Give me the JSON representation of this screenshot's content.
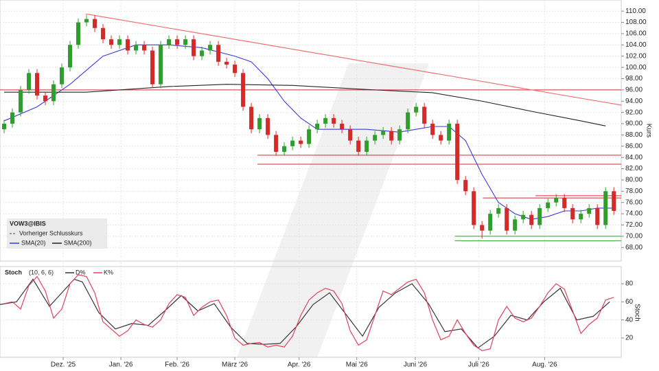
{
  "chart_data": [
    {
      "type": "candlestick",
      "title": "VOW3@IBIS",
      "reference_label": "Vorheriger Schlusskurs",
      "axis_label": "Kurs",
      "up_color": "#2f9e2f",
      "down_color": "#d42a2a",
      "xlim": [
        -0.5,
        74.9
      ],
      "ylim": [
        66.2,
        111
      ],
      "yticks": [
        {
          "value": 68,
          "label": "68.00"
        },
        {
          "value": 70,
          "label": "70.00"
        },
        {
          "value": 72,
          "label": "72.00"
        },
        {
          "value": 74,
          "label": "74.00"
        },
        {
          "value": 76,
          "label": "76.00"
        },
        {
          "value": 78,
          "label": "78.00"
        },
        {
          "value": 80,
          "label": "80.00"
        },
        {
          "value": 82,
          "label": "82.00"
        },
        {
          "value": 84,
          "label": "84.00"
        },
        {
          "value": 86,
          "label": "86.00"
        },
        {
          "value": 88,
          "label": "88.00"
        },
        {
          "value": 90,
          "label": "90.00"
        },
        {
          "value": 92,
          "label": "92.00"
        },
        {
          "value": 94,
          "label": "94.00"
        },
        {
          "value": 96,
          "label": "96.00"
        },
        {
          "value": 98,
          "label": "98.00"
        },
        {
          "value": 100,
          "label": "100.00"
        },
        {
          "value": 102,
          "label": "102.00"
        },
        {
          "value": 104,
          "label": "104.00"
        },
        {
          "value": 106,
          "label": "106.00"
        },
        {
          "value": 108,
          "label": "108.00"
        },
        {
          "value": 110,
          "label": "110.00"
        }
      ],
      "grid": true,
      "open": [
        89,
        90,
        92,
        96,
        99,
        95,
        94,
        97,
        100,
        104,
        108,
        108.6,
        107,
        105,
        104,
        105,
        103,
        104,
        103,
        97,
        104,
        105,
        104,
        105,
        102,
        103,
        104,
        101,
        100.5,
        99,
        93,
        89,
        91,
        88,
        85,
        86,
        87,
        86.4,
        89,
        90,
        91,
        90,
        89,
        87,
        85,
        87,
        88,
        88.7,
        87,
        89,
        92,
        93,
        90,
        88,
        87,
        90,
        80,
        78,
        72,
        71,
        74,
        75,
        71,
        73,
        73.8,
        72,
        75,
        76,
        76.8,
        75,
        73,
        74,
        75,
        72,
        78
      ],
      "high": [
        90.7,
        92.7,
        96.7,
        99.7,
        99.7,
        95.7,
        97.7,
        100.7,
        104.7,
        108.7,
        109.3,
        109.3,
        107.7,
        105.7,
        105.7,
        105.7,
        104.7,
        104.7,
        103.7,
        104.7,
        105.7,
        105.7,
        105.7,
        105.7,
        103.7,
        104.7,
        104.7,
        101.7,
        101.2,
        99.7,
        93.7,
        91.7,
        91.7,
        88.7,
        86.7,
        87.7,
        87.7,
        89.7,
        90.7,
        91.7,
        91.7,
        90.7,
        89.7,
        87.7,
        87.7,
        88.7,
        89.4,
        89.4,
        89.7,
        92.7,
        93.7,
        93.7,
        90.7,
        88.7,
        90.7,
        90.7,
        80.7,
        78.7,
        72.7,
        74.7,
        75.7,
        75.7,
        73.7,
        74.5,
        74.5,
        75.7,
        76.7,
        77.5,
        77.5,
        75.7,
        74.7,
        75.7,
        75.7,
        78.7,
        78.7
      ],
      "low": [
        88.3,
        89.3,
        91.3,
        95.3,
        94.3,
        93.3,
        93.3,
        96.3,
        99.3,
        103.3,
        107.3,
        106.3,
        104.3,
        103.3,
        103.3,
        102.3,
        102.3,
        102.3,
        96.3,
        96.3,
        103.3,
        103.3,
        103.3,
        101.3,
        101.3,
        102.3,
        100.3,
        99.8,
        98.3,
        92.3,
        88.3,
        88.3,
        87.3,
        84.3,
        84.3,
        85.3,
        85.7,
        85.7,
        88.3,
        89.3,
        89.3,
        88.3,
        86.3,
        84.3,
        84.3,
        86.3,
        87.3,
        86.3,
        86.3,
        88.3,
        91.3,
        89.3,
        87.3,
        86.3,
        86.3,
        79.3,
        77.3,
        71.3,
        69.6,
        70.3,
        73.3,
        70.3,
        70.3,
        72.3,
        71.3,
        71.3,
        74.3,
        75.3,
        74.3,
        72.3,
        72.3,
        73.3,
        71.3,
        71.3,
        73.8
      ],
      "close": [
        90,
        92,
        96,
        99,
        95,
        94,
        97,
        100,
        104,
        108,
        108.6,
        107,
        105,
        104,
        105,
        103,
        104,
        103,
        97,
        104,
        105,
        104,
        105,
        102,
        103,
        104,
        101,
        100.5,
        99,
        93,
        89,
        91,
        88,
        85,
        86,
        87,
        86.4,
        89,
        90,
        91,
        90,
        89,
        87,
        85,
        87,
        88,
        88.7,
        87,
        89,
        92,
        93,
        90,
        88,
        87,
        90,
        80,
        78,
        72,
        71,
        74,
        75,
        71,
        73,
        73.8,
        72,
        75,
        76,
        76.8,
        75,
        73,
        74,
        75,
        72,
        78,
        74.5
      ],
      "series": [
        {
          "name": "SMA(20)",
          "color": "#3a3adf",
          "x": [
            0,
            4,
            8,
            12,
            16,
            20,
            24,
            28,
            30,
            32,
            34,
            36,
            38,
            40,
            44,
            48,
            50,
            52,
            54,
            56,
            58,
            60,
            62,
            64,
            66,
            68,
            70,
            72,
            74
          ],
          "values": [
            90.5,
            93,
            97,
            102,
            104,
            104,
            103.5,
            102,
            101,
            98,
            94,
            91,
            89,
            89,
            89,
            88.5,
            89,
            89.5,
            89.5,
            87,
            81,
            76,
            74,
            73,
            73.5,
            74.5,
            74.5,
            75,
            75
          ]
        },
        {
          "name": "SMA(200)",
          "color": "#222222",
          "x": [
            0,
            10,
            20,
            27,
            35,
            45,
            52,
            58,
            64,
            70,
            73
          ],
          "values": [
            95.6,
            95.6,
            96.6,
            97,
            96.8,
            96,
            95.5,
            94,
            92.2,
            90.5,
            89.6
          ]
        }
      ],
      "levels": [
        {
          "value": 96,
          "start": -0.5,
          "color": "#d42a2a"
        },
        {
          "value": 84.4,
          "start": 30.75,
          "color": "#d42a2a"
        },
        {
          "value": 82.8,
          "start": 30.75,
          "color": "#d42a2a"
        },
        {
          "value": 77.2,
          "start": 64.5,
          "color": "#d42a2a"
        },
        {
          "value": 76.8,
          "start": 58.1,
          "color": "#d42a2a"
        },
        {
          "value": 70,
          "start": 54.7,
          "color": "#2f9e2f"
        },
        {
          "value": 69.2,
          "start": 54.7,
          "color": "#2f9e2f"
        }
      ],
      "trendline": {
        "x": [
          9.9,
          74.9
        ],
        "values": [
          109.5,
          93.3
        ],
        "color": "#f07070"
      }
    },
    {
      "type": "line",
      "title": "Stoch",
      "params": "(10, 6, 6)",
      "axis_label": "Stoch",
      "xlim": [
        -0.5,
        74.9
      ],
      "ylim": [
        -1.3,
        97.5
      ],
      "yticks": [
        20,
        40,
        60,
        80
      ],
      "grid": true,
      "xticks": [
        {
          "value": 7.17,
          "label": "Dez. '25"
        },
        {
          "value": 14.17,
          "label": "Jan. '26"
        },
        {
          "value": 21,
          "label": "Feb. '26"
        },
        {
          "value": 28,
          "label": "März '26"
        },
        {
          "value": 35.8,
          "label": "Apr. '26"
        },
        {
          "value": 42.8,
          "label": "Mai '26"
        },
        {
          "value": 49.9,
          "label": "Juni '26"
        },
        {
          "value": 57.6,
          "label": "Juli '26"
        },
        {
          "value": 65.6,
          "label": "Aug. '26"
        }
      ],
      "series": [
        {
          "name": "D%",
          "color": "#333333",
          "x": [
            -0.5,
            1.5,
            3.5,
            5.5,
            7.5,
            8.5,
            9.5,
            11.5,
            13.5,
            15.5,
            17.5,
            19.5,
            21.5,
            23.5,
            25.5,
            27.5,
            29.5,
            31.5,
            33.5,
            35.5,
            37.5,
            39.5,
            41.5,
            43.5,
            45.5,
            47.5,
            49.5,
            51.5,
            53.5,
            55.5,
            57.5,
            59.5,
            61.5,
            63.5,
            65.5,
            67.5,
            69.5,
            71.5,
            73.5
          ],
          "values": [
            57,
            60,
            85,
            55,
            75,
            85,
            82,
            48,
            30,
            36,
            34,
            50,
            67,
            50,
            58,
            32,
            14,
            13,
            14,
            33,
            57,
            70,
            46,
            22,
            54,
            70,
            80,
            58,
            27,
            30,
            9,
            22,
            45,
            40,
            60,
            75,
            40,
            44,
            60
          ]
        },
        {
          "name": "K%",
          "color": "#e0405a",
          "values": [
            58,
            60,
            52,
            78,
            88,
            72,
            42,
            52,
            80,
            90,
            88,
            70,
            38,
            30,
            22,
            28,
            40,
            35,
            32,
            40,
            58,
            68,
            65,
            45,
            54,
            60,
            62,
            45,
            20,
            12,
            14,
            15,
            10,
            12,
            10,
            22,
            45,
            62,
            70,
            75,
            72,
            58,
            28,
            12,
            18,
            45,
            72,
            68,
            75,
            82,
            85,
            70,
            40,
            18,
            22,
            40,
            25,
            12,
            6,
            8,
            40,
            55,
            42,
            38,
            42,
            55,
            70,
            80,
            74,
            50,
            25,
            35,
            42,
            62,
            65
          ]
        }
      ]
    }
  ]
}
